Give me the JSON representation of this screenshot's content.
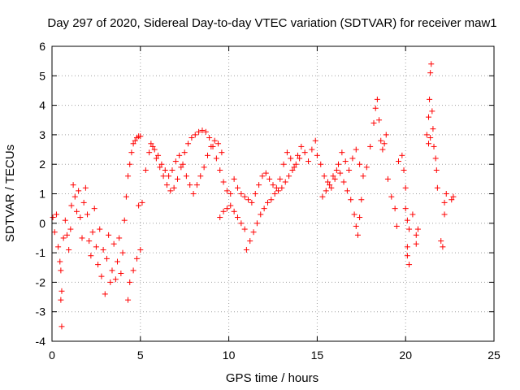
{
  "chart_data": {
    "type": "scatter",
    "title": "Day 297 of 2020, Sidereal Day-to-day VTEC variation (SDTVAR) for receiver maw1",
    "xlabel": "GPS time / hours",
    "ylabel": "SDTVAR / TECUs",
    "xlim": [
      0,
      25
    ],
    "ylim": [
      -4,
      6
    ],
    "xticks": [
      0,
      5,
      10,
      15,
      20,
      25
    ],
    "yticks": [
      -4,
      -3,
      -2,
      -1,
      0,
      1,
      2,
      3,
      4,
      5,
      6
    ],
    "grid": true,
    "marker": "+",
    "marker_color": "#ff0000",
    "series": [
      {
        "name": "SDTVAR",
        "points": [
          [
            0.05,
            0.2
          ],
          [
            0.15,
            -0.3
          ],
          [
            0.25,
            0.3
          ],
          [
            0.35,
            -0.8
          ],
          [
            0.45,
            -1.3
          ],
          [
            0.5,
            -1.6
          ],
          [
            0.55,
            -2.3
          ],
          [
            0.5,
            -2.6
          ],
          [
            0.55,
            -3.5
          ],
          [
            0.65,
            -0.5
          ],
          [
            0.75,
            0.1
          ],
          [
            0.85,
            -0.4
          ],
          [
            0.95,
            -0.9
          ],
          [
            1.05,
            -0.2
          ],
          [
            1.1,
            0.6
          ],
          [
            1.2,
            1.3
          ],
          [
            1.3,
            0.9
          ],
          [
            1.4,
            0.4
          ],
          [
            1.5,
            1.1
          ],
          [
            1.6,
            0.2
          ],
          [
            1.7,
            -0.5
          ],
          [
            1.8,
            0.7
          ],
          [
            1.9,
            1.2
          ],
          [
            2.0,
            0.3
          ],
          [
            2.1,
            -0.6
          ],
          [
            2.2,
            -1.1
          ],
          [
            2.3,
            -0.3
          ],
          [
            2.4,
            0.5
          ],
          [
            2.5,
            -0.8
          ],
          [
            2.6,
            -1.4
          ],
          [
            2.7,
            -0.2
          ],
          [
            2.8,
            -1.8
          ],
          [
            2.9,
            -0.9
          ],
          [
            3.0,
            -2.4
          ],
          [
            3.1,
            -1.2
          ],
          [
            3.2,
            -0.4
          ],
          [
            3.3,
            -2.0
          ],
          [
            3.4,
            -1.6
          ],
          [
            3.5,
            -0.7
          ],
          [
            3.6,
            -1.9
          ],
          [
            3.7,
            -1.3
          ],
          [
            3.8,
            -0.5
          ],
          [
            3.9,
            -1.7
          ],
          [
            4.0,
            -1.0
          ],
          [
            4.1,
            0.1
          ],
          [
            4.2,
            0.9
          ],
          [
            4.3,
            1.6
          ],
          [
            4.4,
            2.0
          ],
          [
            4.5,
            2.4
          ],
          [
            4.6,
            2.7
          ],
          [
            4.7,
            2.8
          ],
          [
            4.8,
            2.9
          ],
          [
            4.9,
            2.95
          ],
          [
            5.0,
            2.95
          ],
          [
            4.3,
            -2.6
          ],
          [
            4.4,
            -2.0
          ],
          [
            4.6,
            -1.6
          ],
          [
            4.8,
            -1.2
          ],
          [
            5.0,
            -0.9
          ],
          [
            4.9,
            0.6
          ],
          [
            5.1,
            0.7
          ],
          [
            5.3,
            1.8
          ],
          [
            5.5,
            2.4
          ],
          [
            5.7,
            2.6
          ],
          [
            5.9,
            2.2
          ],
          [
            6.1,
            1.9
          ],
          [
            6.3,
            1.6
          ],
          [
            6.5,
            1.3
          ],
          [
            6.7,
            1.1
          ],
          [
            6.9,
            1.2
          ],
          [
            7.1,
            1.5
          ],
          [
            7.3,
            1.9
          ],
          [
            7.5,
            2.4
          ],
          [
            7.7,
            2.7
          ],
          [
            7.9,
            2.9
          ],
          [
            8.1,
            3.0
          ],
          [
            8.3,
            3.1
          ],
          [
            8.5,
            3.15
          ],
          [
            8.7,
            3.1
          ],
          [
            8.9,
            2.9
          ],
          [
            9.1,
            2.6
          ],
          [
            9.3,
            2.2
          ],
          [
            9.5,
            1.8
          ],
          [
            9.7,
            1.4
          ],
          [
            9.9,
            1.1
          ],
          [
            10.1,
            1.0
          ],
          [
            5.6,
            2.7
          ],
          [
            5.8,
            2.5
          ],
          [
            6.0,
            2.3
          ],
          [
            6.2,
            2.0
          ],
          [
            6.4,
            1.8
          ],
          [
            6.6,
            1.6
          ],
          [
            6.8,
            1.8
          ],
          [
            7.0,
            2.1
          ],
          [
            7.2,
            2.3
          ],
          [
            7.4,
            2.0
          ],
          [
            7.6,
            1.6
          ],
          [
            7.8,
            1.3
          ],
          [
            8.0,
            1.0
          ],
          [
            8.2,
            1.3
          ],
          [
            8.4,
            1.6
          ],
          [
            8.6,
            1.9
          ],
          [
            8.8,
            2.3
          ],
          [
            9.0,
            2.6
          ],
          [
            9.2,
            2.8
          ],
          [
            9.4,
            2.7
          ],
          [
            9.6,
            2.4
          ],
          [
            9.5,
            0.2
          ],
          [
            9.7,
            0.4
          ],
          [
            9.9,
            0.5
          ],
          [
            10.1,
            0.6
          ],
          [
            10.3,
            0.4
          ],
          [
            10.5,
            0.2
          ],
          [
            10.7,
            0.0
          ],
          [
            10.9,
            -0.2
          ],
          [
            10.3,
            1.5
          ],
          [
            10.5,
            1.2
          ],
          [
            10.7,
            1.0
          ],
          [
            10.9,
            0.9
          ],
          [
            11.1,
            0.8
          ],
          [
            11.3,
            0.7
          ],
          [
            11.5,
            1.0
          ],
          [
            11.7,
            1.3
          ],
          [
            11.9,
            1.6
          ],
          [
            12.1,
            1.7
          ],
          [
            12.3,
            1.5
          ],
          [
            12.5,
            1.3
          ],
          [
            12.7,
            1.2
          ],
          [
            12.9,
            1.5
          ],
          [
            13.1,
            2.0
          ],
          [
            13.3,
            2.4
          ],
          [
            13.5,
            2.2
          ],
          [
            13.7,
            1.9
          ],
          [
            13.9,
            2.3
          ],
          [
            14.1,
            2.6
          ],
          [
            14.3,
            2.4
          ],
          [
            14.5,
            2.1
          ],
          [
            14.7,
            2.5
          ],
          [
            14.9,
            2.8
          ],
          [
            11.0,
            -0.9
          ],
          [
            11.2,
            -0.6
          ],
          [
            11.4,
            -0.3
          ],
          [
            11.6,
            0.0
          ],
          [
            11.8,
            0.3
          ],
          [
            12.0,
            0.5
          ],
          [
            12.2,
            0.7
          ],
          [
            12.4,
            0.8
          ],
          [
            12.6,
            1.0
          ],
          [
            12.8,
            1.1
          ],
          [
            13.0,
            1.2
          ],
          [
            13.2,
            1.4
          ],
          [
            13.4,
            1.6
          ],
          [
            13.6,
            1.8
          ],
          [
            13.8,
            2.0
          ],
          [
            14.0,
            2.2
          ],
          [
            15.0,
            2.3
          ],
          [
            15.2,
            2.0
          ],
          [
            15.4,
            1.6
          ],
          [
            15.6,
            1.4
          ],
          [
            15.8,
            1.2
          ],
          [
            16.0,
            1.5
          ],
          [
            16.2,
            2.0
          ],
          [
            16.4,
            2.4
          ],
          [
            16.6,
            2.1
          ],
          [
            16.8,
            1.8
          ],
          [
            17.0,
            2.2
          ],
          [
            17.2,
            2.5
          ],
          [
            17.4,
            2.0
          ],
          [
            17.6,
            1.6
          ],
          [
            17.8,
            1.9
          ],
          [
            18.0,
            2.6
          ],
          [
            18.2,
            3.4
          ],
          [
            18.3,
            3.9
          ],
          [
            18.4,
            4.2
          ],
          [
            18.5,
            3.5
          ],
          [
            18.6,
            2.8
          ],
          [
            18.7,
            2.5
          ],
          [
            18.8,
            2.7
          ],
          [
            18.9,
            3.0
          ],
          [
            15.3,
            0.9
          ],
          [
            15.5,
            1.1
          ],
          [
            15.7,
            1.3
          ],
          [
            15.9,
            1.6
          ],
          [
            16.1,
            1.8
          ],
          [
            16.3,
            1.7
          ],
          [
            16.5,
            1.4
          ],
          [
            16.7,
            1.1
          ],
          [
            16.9,
            0.8
          ],
          [
            17.1,
            0.3
          ],
          [
            17.2,
            -0.1
          ],
          [
            17.3,
            -0.4
          ],
          [
            17.4,
            0.2
          ],
          [
            17.5,
            0.8
          ],
          [
            19.0,
            1.5
          ],
          [
            19.2,
            0.9
          ],
          [
            19.4,
            0.5
          ],
          [
            19.5,
            -0.1
          ],
          [
            19.6,
            2.1
          ],
          [
            19.8,
            2.3
          ],
          [
            19.9,
            1.8
          ],
          [
            20.0,
            1.2
          ],
          [
            20.0,
            0.5
          ],
          [
            20.1,
            0.1
          ],
          [
            20.2,
            -0.2
          ],
          [
            20.4,
            0.3
          ],
          [
            20.6,
            -0.4
          ],
          [
            20.7,
            -0.2
          ],
          [
            20.1,
            -0.8
          ],
          [
            20.1,
            -1.1
          ],
          [
            20.2,
            -1.4
          ],
          [
            20.6,
            -0.7
          ],
          [
            21.2,
            3.0
          ],
          [
            21.3,
            3.6
          ],
          [
            21.35,
            4.2
          ],
          [
            21.4,
            5.1
          ],
          [
            21.45,
            5.4
          ],
          [
            21.5,
            3.8
          ],
          [
            21.55,
            3.2
          ],
          [
            21.6,
            2.6
          ],
          [
            21.7,
            2.2
          ],
          [
            21.75,
            1.8
          ],
          [
            21.8,
            1.2
          ],
          [
            21.3,
            2.7
          ],
          [
            21.4,
            2.9
          ],
          [
            22.0,
            -0.6
          ],
          [
            22.1,
            -0.8
          ],
          [
            22.2,
            0.3
          ],
          [
            22.3,
            1.0
          ],
          [
            22.2,
            0.7
          ],
          [
            22.6,
            0.8
          ],
          [
            22.7,
            0.9
          ]
        ]
      }
    ]
  }
}
